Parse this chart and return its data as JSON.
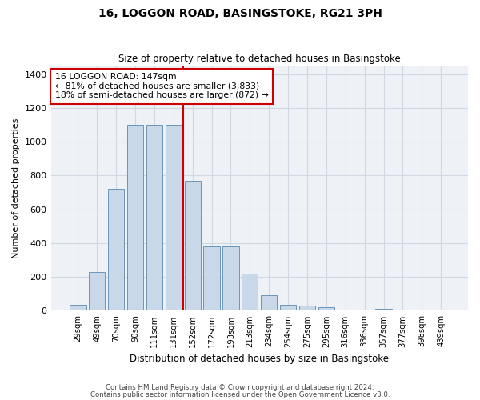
{
  "title": "16, LOGGON ROAD, BASINGSTOKE, RG21 3PH",
  "subtitle": "Size of property relative to detached houses in Basingstoke",
  "xlabel": "Distribution of detached houses by size in Basingstoke",
  "ylabel": "Number of detached properties",
  "categories": [
    "29sqm",
    "49sqm",
    "70sqm",
    "90sqm",
    "111sqm",
    "131sqm",
    "152sqm",
    "172sqm",
    "193sqm",
    "213sqm",
    "234sqm",
    "254sqm",
    "275sqm",
    "295sqm",
    "316sqm",
    "336sqm",
    "357sqm",
    "377sqm",
    "398sqm",
    "439sqm"
  ],
  "values": [
    35,
    230,
    720,
    1100,
    1100,
    1100,
    770,
    380,
    380,
    220,
    90,
    35,
    30,
    20,
    0,
    0,
    10,
    0,
    0,
    0
  ],
  "bar_color": "#c8d8e8",
  "bar_edge_color": "#5a8ab0",
  "vline_x": 5.5,
  "vline_color": "#cc0000",
  "annotation_text": "16 LOGGON ROAD: 147sqm\n← 81% of detached houses are smaller (3,833)\n18% of semi-detached houses are larger (872) →",
  "annotation_box_color": "#ffffff",
  "annotation_box_edgecolor": "#cc0000",
  "ylim": [
    0,
    1450
  ],
  "yticks": [
    0,
    200,
    400,
    600,
    800,
    1000,
    1200,
    1400
  ],
  "footer1": "Contains HM Land Registry data © Crown copyright and database right 2024.",
  "footer2": "Contains public sector information licensed under the Open Government Licence v3.0.",
  "bg_color": "#eef2f7",
  "grid_color": "#d0d8e4"
}
